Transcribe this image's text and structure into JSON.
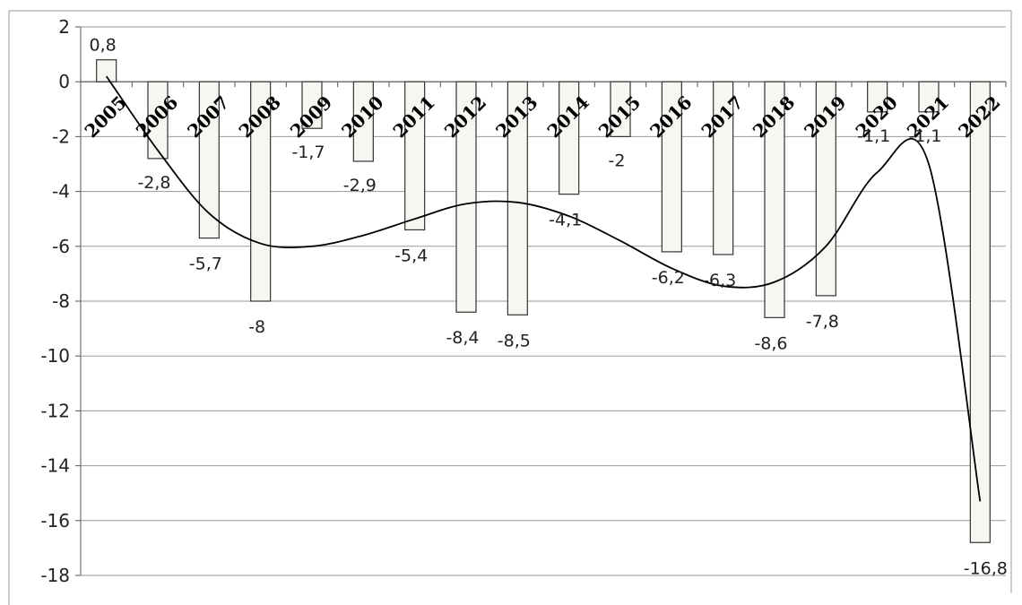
{
  "chart_data": {
    "type": "bar",
    "title": "",
    "xlabel": "",
    "ylabel": "",
    "categories": [
      "2005",
      "2006",
      "2007",
      "2008",
      "2009",
      "2010",
      "2011",
      "2012",
      "2013",
      "2014",
      "2015",
      "2016",
      "2017",
      "2018",
      "2019",
      "2020",
      "2021",
      "2022"
    ],
    "values": [
      0.8,
      -2.8,
      -5.7,
      -8,
      -1.7,
      -2.9,
      -5.4,
      -8.4,
      -8.5,
      -4.1,
      -2,
      -6.2,
      -6.3,
      -8.6,
      -7.8,
      -1.1,
      -1.1,
      -16.8
    ],
    "data_labels": [
      "0,8",
      "-2,8",
      "-5,7",
      "-8",
      "-1,7",
      "-2,9",
      "-5,4",
      "-8,4",
      "-8,5",
      "-4,1",
      "-2",
      "-6,2",
      "-6,3",
      "-8,6",
      "-7,8",
      "-1,1",
      "-1,1",
      "-16,8"
    ],
    "ylim": [
      -18,
      2
    ],
    "yticks": [
      2,
      0,
      -2,
      -4,
      -6,
      -8,
      -10,
      -12,
      -14,
      -16,
      -18
    ],
    "ytick_labels": [
      "2",
      "0",
      "-2",
      "-4",
      "-6",
      "-8",
      "-10",
      "-12",
      "-14",
      "-16",
      "-18"
    ],
    "grid": true,
    "legend": "none",
    "trendline": {
      "type": "polynomial",
      "points": [
        [
          0,
          0.2
        ],
        [
          1,
          -2.5
        ],
        [
          2,
          -4.8
        ],
        [
          3,
          -5.9
        ],
        [
          4,
          -6.0
        ],
        [
          5,
          -5.6
        ],
        [
          6,
          -5.0
        ],
        [
          7,
          -4.45
        ],
        [
          8,
          -4.4
        ],
        [
          9,
          -4.9
        ],
        [
          10,
          -5.8
        ],
        [
          11,
          -6.8
        ],
        [
          12,
          -7.45
        ],
        [
          13,
          -7.3
        ],
        [
          14,
          -6.0
        ],
        [
          15,
          -3.3
        ],
        [
          16,
          -3.0
        ],
        [
          17,
          -15.3
        ]
      ]
    },
    "colors": {
      "bar_fill": "#f7f7f2",
      "bar_stroke": "#333333",
      "grid": "#9a9a9a",
      "trendline": "#000000"
    }
  }
}
